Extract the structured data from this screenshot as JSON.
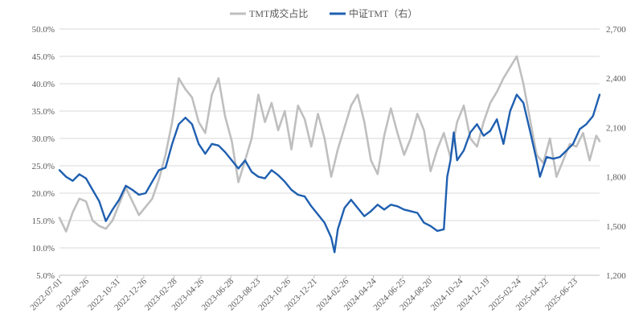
{
  "chart_data": {
    "type": "line",
    "legend_position": "top-center",
    "grid": "horizontal",
    "colors": {
      "share": "#bfbfbf",
      "index": "#1f5fb0",
      "grid": "#d9d9d9"
    },
    "y_left": {
      "range": [
        5,
        50
      ],
      "ticks": [
        5,
        10,
        15,
        20,
        25,
        30,
        35,
        40,
        45,
        50
      ],
      "tick_labels": [
        "5.0%",
        "10.0%",
        "15.0%",
        "20.0%",
        "25.0%",
        "30.0%",
        "35.0%",
        "40.0%",
        "45.0%",
        "50.0%"
      ]
    },
    "y_right": {
      "range": [
        1200,
        2700
      ],
      "ticks": [
        1200,
        1500,
        1800,
        2100,
        2400,
        2700
      ],
      "tick_labels": [
        "1,200",
        "1,500",
        "1,800",
        "2,100",
        "2,400",
        "2,700"
      ]
    },
    "x_range": [
      "2022-07-01",
      "2025-08-15"
    ],
    "x_ticks": [
      "2022-07-01",
      "2022-08-26",
      "2022-10-31",
      "2022-12-26",
      "2023-02-28",
      "2023-04-26",
      "2023-06-28",
      "2023-08-23",
      "2023-10-26",
      "2023-12-21",
      "2024-02-26",
      "2024-04-24",
      "2024-06-25",
      "2024-08-20",
      "2024-10-24",
      "2024-12-19",
      "2025-02-24",
      "2025-04-22",
      "2025-06-23"
    ],
    "series": [
      {
        "name": "TMT成交占比",
        "axis": "left",
        "x": [
          "2022-07-01",
          "2022-07-15",
          "2022-07-29",
          "2022-08-12",
          "2022-08-26",
          "2022-09-09",
          "2022-09-23",
          "2022-10-07",
          "2022-10-21",
          "2022-11-04",
          "2022-11-18",
          "2022-12-02",
          "2022-12-16",
          "2022-12-30",
          "2023-01-13",
          "2023-01-27",
          "2023-02-10",
          "2023-02-24",
          "2023-03-10",
          "2023-03-24",
          "2023-04-07",
          "2023-04-21",
          "2023-05-05",
          "2023-05-19",
          "2023-06-02",
          "2023-06-16",
          "2023-06-30",
          "2023-07-14",
          "2023-07-28",
          "2023-08-11",
          "2023-08-25",
          "2023-09-08",
          "2023-09-22",
          "2023-10-06",
          "2023-10-20",
          "2023-11-03",
          "2023-11-17",
          "2023-12-01",
          "2023-12-15",
          "2023-12-29",
          "2024-01-12",
          "2024-01-26",
          "2024-02-09",
          "2024-02-23",
          "2024-03-08",
          "2024-03-22",
          "2024-04-05",
          "2024-04-19",
          "2024-05-03",
          "2024-05-17",
          "2024-05-31",
          "2024-06-14",
          "2024-06-28",
          "2024-07-12",
          "2024-07-26",
          "2024-08-09",
          "2024-08-23",
          "2024-09-06",
          "2024-09-20",
          "2024-10-04",
          "2024-10-18",
          "2024-11-01",
          "2024-11-15",
          "2024-11-29",
          "2024-12-13",
          "2024-12-27",
          "2025-01-10",
          "2025-01-24",
          "2025-02-07",
          "2025-02-21",
          "2025-03-07",
          "2025-03-21",
          "2025-04-04",
          "2025-04-18",
          "2025-05-02",
          "2025-05-16",
          "2025-05-30",
          "2025-06-13",
          "2025-06-27",
          "2025-07-11",
          "2025-07-25",
          "2025-08-08",
          "2025-08-15"
        ],
        "values": [
          15.5,
          13.0,
          16.5,
          19.0,
          18.5,
          15.0,
          14.0,
          13.5,
          15.0,
          18.0,
          21.0,
          18.5,
          16.0,
          17.5,
          19.0,
          22.5,
          27.0,
          33.0,
          41.0,
          39.0,
          37.5,
          33.0,
          31.0,
          38.0,
          41.0,
          34.0,
          29.5,
          22.0,
          26.0,
          30.0,
          38.0,
          33.0,
          36.5,
          31.5,
          35.0,
          28.0,
          36.0,
          33.5,
          28.5,
          34.5,
          30.0,
          23.0,
          28.0,
          32.0,
          36.0,
          38.0,
          33.0,
          26.0,
          23.5,
          30.5,
          35.5,
          31.0,
          27.0,
          30.0,
          34.5,
          31.5,
          24.0,
          28.0,
          31.0,
          26.5,
          33.0,
          36.0,
          30.0,
          28.5,
          33.0,
          36.5,
          38.5,
          41.0,
          43.0,
          45.0,
          40.0,
          33.5,
          27.0,
          25.5,
          30.0,
          23.0,
          26.0,
          29.0,
          28.5,
          31.0,
          26.0,
          30.5,
          29.5
        ]
      },
      {
        "name": "中证TMT（右）",
        "axis": "right",
        "x": [
          "2022-07-01",
          "2022-07-15",
          "2022-07-29",
          "2022-08-12",
          "2022-08-26",
          "2022-09-09",
          "2022-09-23",
          "2022-10-07",
          "2022-10-21",
          "2022-11-04",
          "2022-11-18",
          "2022-12-02",
          "2022-12-16",
          "2022-12-30",
          "2023-01-13",
          "2023-01-27",
          "2023-02-10",
          "2023-02-24",
          "2023-03-10",
          "2023-03-24",
          "2023-04-07",
          "2023-04-21",
          "2023-05-05",
          "2023-05-19",
          "2023-06-02",
          "2023-06-16",
          "2023-06-30",
          "2023-07-14",
          "2023-07-28",
          "2023-08-11",
          "2023-08-25",
          "2023-09-08",
          "2023-09-22",
          "2023-10-06",
          "2023-10-20",
          "2023-11-03",
          "2023-11-17",
          "2023-12-01",
          "2023-12-15",
          "2023-12-29",
          "2024-01-12",
          "2024-01-26",
          "2024-02-02",
          "2024-02-09",
          "2024-02-23",
          "2024-03-08",
          "2024-03-22",
          "2024-04-05",
          "2024-04-19",
          "2024-05-03",
          "2024-05-17",
          "2024-05-31",
          "2024-06-14",
          "2024-06-28",
          "2024-07-12",
          "2024-07-26",
          "2024-08-09",
          "2024-08-23",
          "2024-09-06",
          "2024-09-20",
          "2024-09-27",
          "2024-10-04",
          "2024-10-11",
          "2024-10-18",
          "2024-11-01",
          "2024-11-15",
          "2024-11-29",
          "2024-12-13",
          "2024-12-27",
          "2025-01-10",
          "2025-01-24",
          "2025-02-07",
          "2025-02-21",
          "2025-03-07",
          "2025-03-21",
          "2025-04-04",
          "2025-04-11",
          "2025-04-25",
          "2025-05-09",
          "2025-05-23",
          "2025-06-06",
          "2025-06-20",
          "2025-07-04",
          "2025-07-18",
          "2025-08-01",
          "2025-08-15"
        ],
        "values": [
          1840,
          1800,
          1775,
          1815,
          1790,
          1720,
          1650,
          1530,
          1600,
          1660,
          1745,
          1720,
          1690,
          1700,
          1770,
          1840,
          1855,
          2000,
          2120,
          2160,
          2120,
          2000,
          1940,
          2000,
          1990,
          1950,
          1900,
          1850,
          1900,
          1830,
          1800,
          1790,
          1840,
          1810,
          1770,
          1720,
          1690,
          1680,
          1620,
          1570,
          1520,
          1430,
          1340,
          1480,
          1610,
          1660,
          1610,
          1560,
          1590,
          1630,
          1600,
          1630,
          1620,
          1600,
          1590,
          1580,
          1520,
          1500,
          1470,
          1480,
          1800,
          1900,
          2070,
          1900,
          1960,
          2070,
          2120,
          2050,
          2080,
          2150,
          2000,
          2200,
          2300,
          2250,
          2080,
          1900,
          1800,
          1920,
          1910,
          1920,
          1960,
          2000,
          2090,
          2120,
          2170,
          2300
        ]
      }
    ]
  }
}
